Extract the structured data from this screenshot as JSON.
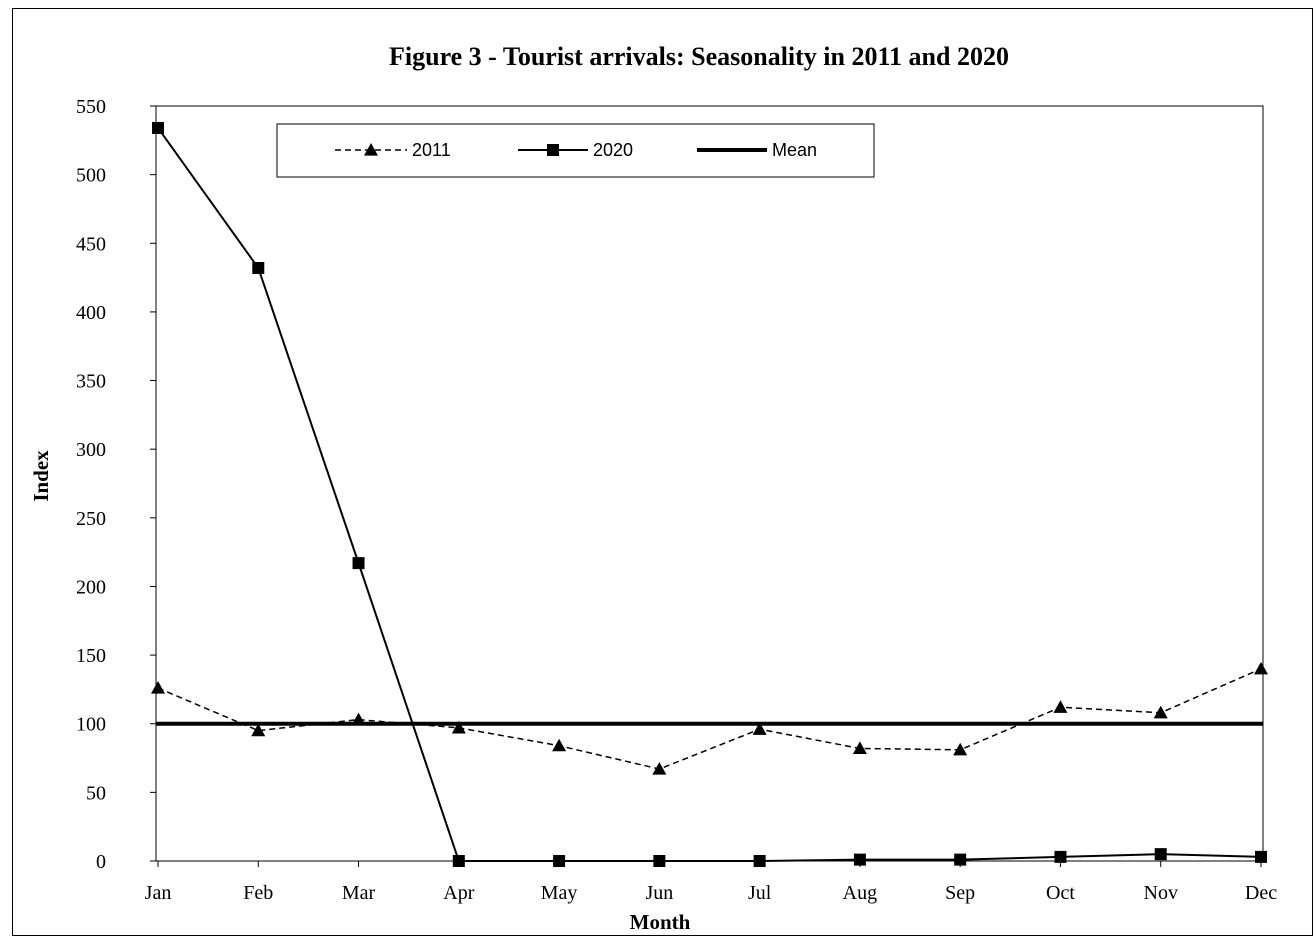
{
  "chart_data": {
    "type": "line",
    "title": "Figure 3 - Tourist arrivals: Seasonality in 2011 and 2020",
    "xlabel": "Month",
    "ylabel": "Index",
    "categories": [
      "Jan",
      "Feb",
      "Mar",
      "Apr",
      "May",
      "Jun",
      "Jul",
      "Aug",
      "Sep",
      "Oct",
      "Nov",
      "Dec"
    ],
    "yticks": [
      0,
      50,
      100,
      150,
      200,
      250,
      300,
      350,
      400,
      450,
      500,
      550
    ],
    "ylim": [
      0,
      550
    ],
    "grid": false,
    "legend_position": "top",
    "series": [
      {
        "name": "2011",
        "style": "dashed",
        "marker": "triangle",
        "color": "#000000",
        "values": [
          126,
          95,
          103,
          97,
          84,
          67,
          96,
          82,
          81,
          112,
          108,
          140
        ]
      },
      {
        "name": "2020",
        "style": "solid",
        "marker": "square",
        "color": "#000000",
        "values": [
          534,
          432,
          217,
          0,
          0,
          0,
          0,
          1,
          1,
          3,
          5,
          3
        ]
      },
      {
        "name": "Mean",
        "style": "thick",
        "marker": "none",
        "color": "#000000",
        "values": [
          100,
          100,
          100,
          100,
          100,
          100,
          100,
          100,
          100,
          100,
          100,
          100
        ]
      }
    ]
  }
}
